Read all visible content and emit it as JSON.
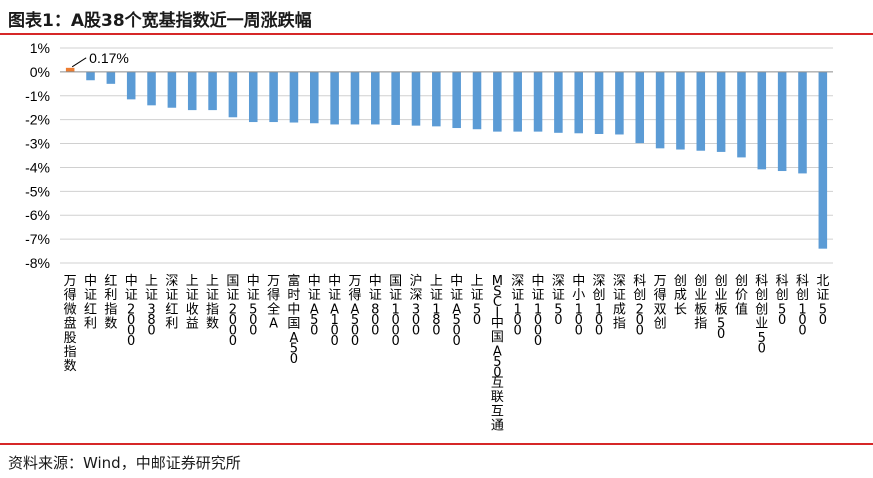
{
  "header": {
    "title": "图表1：A股38个宽基指数近一周涨跌幅"
  },
  "footer": {
    "source": "资料来源：Wind，中邮证券研究所"
  },
  "colors": {
    "accent": "#d62728",
    "bar": "#5b9bd5",
    "highlight": "#ed7d31"
  },
  "chart_data": {
    "type": "bar",
    "title": "图表1：A股38个宽基指数近一周涨跌幅",
    "xlabel": "",
    "ylabel": "",
    "ylim": [
      -8,
      1
    ],
    "yticks": [
      1,
      0,
      -1,
      -2,
      -3,
      -4,
      -5,
      -6,
      -7,
      -8
    ],
    "ytick_labels": [
      "1%",
      "0%",
      "-1%",
      "-2%",
      "-3%",
      "-4%",
      "-5%",
      "-6%",
      "-7%",
      "-8%"
    ],
    "grid": "horizontal",
    "legend": "none",
    "categories": [
      "万得微盘股指数",
      "中证红利",
      "红利指数",
      "中证2000",
      "上证380",
      "深证红利",
      "上证收益",
      "上证指数",
      "国证2000",
      "中证500",
      "万得全A",
      "富时中国A50",
      "中证A50",
      "中证A100",
      "万得A500",
      "中证800",
      "国证1000",
      "沪深300",
      "上证180",
      "中证A500",
      "上证50",
      "MSCI中国A50互联互通",
      "深证100",
      "中证1000",
      "深证50",
      "中小100",
      "深创100",
      "深证成指",
      "科创200",
      "万得双创",
      "创成长",
      "创业板指",
      "创业板50",
      "创价值",
      "科创创业50",
      "科创50",
      "科创100",
      "北证50"
    ],
    "values": [
      0.17,
      -0.35,
      -0.5,
      -1.15,
      -1.4,
      -1.5,
      -1.6,
      -1.6,
      -1.9,
      -2.1,
      -2.1,
      -2.12,
      -2.15,
      -2.2,
      -2.2,
      -2.2,
      -2.22,
      -2.25,
      -2.28,
      -2.35,
      -2.4,
      -2.5,
      -2.5,
      -2.5,
      -2.55,
      -2.57,
      -2.6,
      -2.62,
      -2.98,
      -3.2,
      -3.25,
      -3.3,
      -3.35,
      -3.58,
      -4.08,
      -4.15,
      -4.25,
      -7.4
    ],
    "highlight_index": 0,
    "annotations": [
      "0.17%"
    ]
  }
}
